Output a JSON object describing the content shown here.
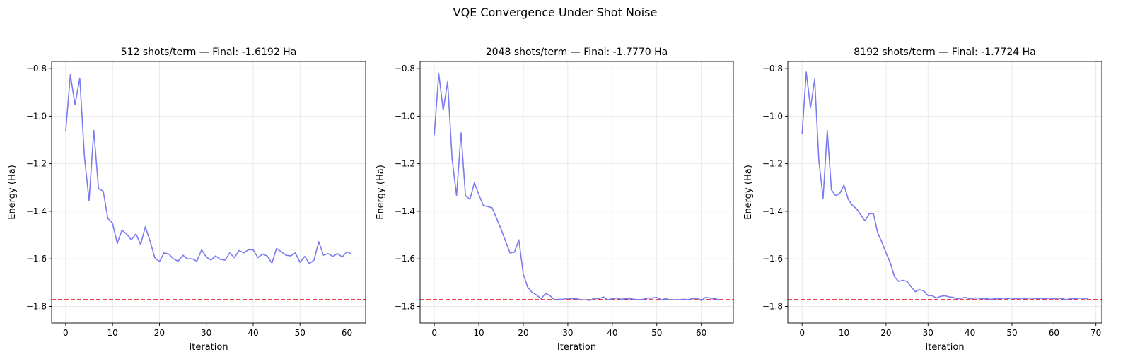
{
  "figure_title": "VQE Convergence Under Shot Noise",
  "chart_data": [
    {
      "type": "line",
      "title": "512 shots/term — Final: -1.6192 Ha",
      "xlabel": "Iteration",
      "ylabel": "Energy (Ha)",
      "xlim": [
        -3,
        64
      ],
      "ylim": [
        -1.87,
        -0.77
      ],
      "xticks": [
        0,
        10,
        20,
        30,
        40,
        50,
        60
      ],
      "yticks": [
        -1.8,
        -1.6,
        -1.4,
        -1.2,
        -1.0,
        -0.8
      ],
      "grid": true,
      "reference_line": {
        "y": -1.772,
        "color": "#ee0000",
        "style": "dashed"
      },
      "series": [
        {
          "name": "energy",
          "color": "#7b7bef",
          "x": [
            0,
            1,
            2,
            3,
            4,
            5,
            6,
            7,
            8,
            9,
            10,
            11,
            12,
            13,
            14,
            15,
            16,
            17,
            18,
            19,
            20,
            21,
            22,
            23,
            24,
            25,
            26,
            27,
            28,
            29,
            30,
            31,
            32,
            33,
            34,
            35,
            36,
            37,
            38,
            39,
            40,
            41,
            42,
            43,
            44,
            45,
            46,
            47,
            48,
            49,
            50,
            51,
            52,
            53,
            54,
            55,
            56,
            57,
            58,
            59,
            60,
            61
          ],
          "values": [
            -1.065,
            -0.825,
            -0.952,
            -0.84,
            -1.17,
            -1.355,
            -1.06,
            -1.305,
            -1.315,
            -1.43,
            -1.45,
            -1.535,
            -1.48,
            -1.495,
            -1.52,
            -1.495,
            -1.54,
            -1.465,
            -1.525,
            -1.595,
            -1.612,
            -1.575,
            -1.58,
            -1.6,
            -1.61,
            -1.585,
            -1.6,
            -1.6,
            -1.61,
            -1.562,
            -1.592,
            -1.605,
            -1.588,
            -1.602,
            -1.605,
            -1.575,
            -1.595,
            -1.565,
            -1.575,
            -1.562,
            -1.562,
            -1.595,
            -1.58,
            -1.588,
            -1.618,
            -1.556,
            -1.57,
            -1.585,
            -1.588,
            -1.575,
            -1.615,
            -1.59,
            -1.62,
            -1.605,
            -1.528,
            -1.585,
            -1.578,
            -1.59,
            -1.578,
            -1.592,
            -1.57,
            -1.58
          ]
        }
      ]
    },
    {
      "type": "line",
      "title": "2048 shots/term — Final: -1.7770 Ha",
      "xlabel": "Iteration",
      "ylabel": "Energy (Ha)",
      "xlim": [
        -3.2,
        67.2
      ],
      "ylim": [
        -1.87,
        -0.77
      ],
      "xticks": [
        0,
        10,
        20,
        30,
        40,
        50,
        60
      ],
      "yticks": [
        -1.8,
        -1.6,
        -1.4,
        -1.2,
        -1.0,
        -0.8
      ],
      "grid": true,
      "reference_line": {
        "y": -1.772,
        "color": "#ee0000",
        "style": "dashed"
      },
      "series": [
        {
          "name": "energy",
          "color": "#7b7bef",
          "x": [
            0,
            1,
            2,
            3,
            4,
            5,
            6,
            7,
            8,
            9,
            10,
            11,
            12,
            13,
            14,
            15,
            16,
            17,
            18,
            19,
            20,
            21,
            22,
            23,
            24,
            25,
            26,
            27,
            28,
            29,
            30,
            31,
            32,
            33,
            34,
            35,
            36,
            37,
            38,
            39,
            40,
            41,
            42,
            43,
            44,
            45,
            46,
            47,
            48,
            49,
            50,
            51,
            52,
            53,
            54,
            55,
            56,
            57,
            58,
            59,
            60,
            61,
            62,
            63,
            64
          ],
          "values": [
            -1.08,
            -0.82,
            -0.975,
            -0.855,
            -1.18,
            -1.335,
            -1.07,
            -1.335,
            -1.35,
            -1.28,
            -1.33,
            -1.375,
            -1.38,
            -1.385,
            -1.43,
            -1.475,
            -1.525,
            -1.575,
            -1.572,
            -1.52,
            -1.665,
            -1.72,
            -1.742,
            -1.752,
            -1.768,
            -1.745,
            -1.755,
            -1.772,
            -1.77,
            -1.77,
            -1.765,
            -1.767,
            -1.768,
            -1.773,
            -1.772,
            -1.775,
            -1.765,
            -1.768,
            -1.76,
            -1.772,
            -1.768,
            -1.765,
            -1.77,
            -1.768,
            -1.768,
            -1.77,
            -1.772,
            -1.77,
            -1.765,
            -1.765,
            -1.762,
            -1.772,
            -1.768,
            -1.772,
            -1.772,
            -1.772,
            -1.77,
            -1.772,
            -1.768,
            -1.765,
            -1.775,
            -1.762,
            -1.765,
            -1.768,
            -1.772
          ]
        }
      ]
    },
    {
      "type": "line",
      "title": "8192 shots/term — Final: -1.7724 Ha",
      "xlabel": "Iteration",
      "ylabel": "Energy (Ha)",
      "xlim": [
        -3.4,
        71.4
      ],
      "ylim": [
        -1.87,
        -0.77
      ],
      "xticks": [
        0,
        10,
        20,
        30,
        40,
        50,
        60,
        70
      ],
      "yticks": [
        -1.8,
        -1.6,
        -1.4,
        -1.2,
        -1.0,
        -0.8
      ],
      "grid": true,
      "reference_line": {
        "y": -1.772,
        "color": "#ee0000",
        "style": "dashed"
      },
      "series": [
        {
          "name": "energy",
          "color": "#7b7bef",
          "x": [
            0,
            1,
            2,
            3,
            4,
            5,
            6,
            7,
            8,
            9,
            10,
            11,
            12,
            13,
            14,
            15,
            16,
            17,
            18,
            19,
            20,
            21,
            22,
            23,
            24,
            25,
            26,
            27,
            28,
            29,
            30,
            31,
            32,
            33,
            34,
            35,
            36,
            37,
            38,
            39,
            40,
            41,
            42,
            43,
            44,
            45,
            46,
            47,
            48,
            49,
            50,
            51,
            52,
            53,
            54,
            55,
            56,
            57,
            58,
            59,
            60,
            61,
            62,
            63,
            64,
            65,
            66,
            67,
            68
          ],
          "values": [
            -1.075,
            -0.815,
            -0.965,
            -0.845,
            -1.185,
            -1.345,
            -1.06,
            -1.31,
            -1.335,
            -1.325,
            -1.29,
            -1.35,
            -1.375,
            -1.39,
            -1.415,
            -1.44,
            -1.41,
            -1.41,
            -1.49,
            -1.53,
            -1.575,
            -1.615,
            -1.675,
            -1.695,
            -1.69,
            -1.695,
            -1.718,
            -1.738,
            -1.73,
            -1.735,
            -1.755,
            -1.755,
            -1.765,
            -1.758,
            -1.755,
            -1.76,
            -1.762,
            -1.768,
            -1.765,
            -1.762,
            -1.768,
            -1.765,
            -1.765,
            -1.767,
            -1.768,
            -1.77,
            -1.768,
            -1.768,
            -1.765,
            -1.767,
            -1.765,
            -1.768,
            -1.765,
            -1.768,
            -1.765,
            -1.766,
            -1.767,
            -1.766,
            -1.767,
            -1.765,
            -1.768,
            -1.765,
            -1.768,
            -1.772,
            -1.767,
            -1.768,
            -1.766,
            -1.765,
            -1.768
          ]
        }
      ]
    }
  ]
}
